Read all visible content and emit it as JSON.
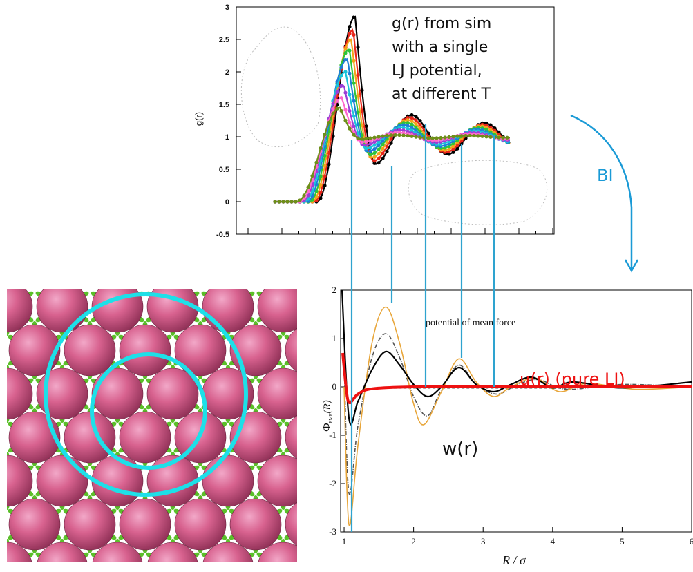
{
  "top_chart": {
    "ylabel": "g(r)",
    "yticks": [
      "3",
      "2.5",
      "2",
      "1.5",
      "1",
      "0.5",
      "0",
      "-0.5"
    ],
    "note_lines": [
      "g(r) from sim",
      "with a single",
      "LJ potential,",
      "at different T"
    ],
    "colors": [
      "#000000",
      "#e8261a",
      "#f2a51a",
      "#2ec43a",
      "#1d7fd6",
      "#19c3d9",
      "#9b3fd6",
      "#ff66cc",
      "#6e8f1a"
    ],
    "chart_data": {
      "type": "line",
      "ylabel": "g(r)",
      "ylim": [
        -0.5,
        3
      ],
      "series_peak_heights": [
        2.85,
        2.65,
        2.5,
        2.35,
        2.2,
        2.0,
        1.8,
        1.6,
        1.45
      ]
    }
  },
  "arrow_label": "BI",
  "bottom_chart": {
    "title": "potential of mean force",
    "xlabel": "R / σ",
    "ylabel_main": "Φ",
    "ylabel_sub": "PMF",
    "ylabel_tail": "(R)",
    "xticks": [
      "1",
      "2",
      "3",
      "4",
      "5",
      "6"
    ],
    "yticks": [
      "2",
      "1",
      "0",
      "-1",
      "-2",
      "-3"
    ],
    "label_u": "u(r) (pure LJ)",
    "label_w": "w(r)",
    "u_color": "#ee1111",
    "chart_data": {
      "type": "line",
      "title": "potential of mean force",
      "xlabel": "R / σ",
      "xlim": [
        0.95,
        6.0
      ],
      "ylim": [
        -3,
        2
      ],
      "series": [
        {
          "name": "u(r) (pure LJ)",
          "color": "#ee1111",
          "x": [
            0.98,
            1.02,
            1.05,
            1.08,
            1.12,
            1.2,
            1.4,
            2.0,
            3.0,
            6.0
          ],
          "y": [
            0.7,
            0.1,
            -0.25,
            -0.33,
            -0.28,
            -0.15,
            -0.04,
            0.0,
            0.0,
            0.0
          ]
        },
        {
          "name": "w(r)",
          "color": "#000000",
          "x": [
            0.97,
            1.07,
            1.2,
            1.4,
            1.6,
            1.8,
            2.0,
            2.2,
            2.4,
            2.65,
            2.9,
            3.15,
            3.4,
            3.7,
            4.0,
            4.3,
            5.0,
            6.0
          ],
          "y": [
            2.0,
            -0.65,
            -0.3,
            0.35,
            0.73,
            0.45,
            0.05,
            -0.2,
            0.0,
            0.4,
            0.05,
            -0.1,
            0.05,
            0.2,
            -0.02,
            0.1,
            -0.02,
            0.1
          ]
        },
        {
          "name": "",
          "color": "#e8a63a",
          "x": [
            1.0,
            1.07,
            1.2,
            1.4,
            1.6,
            1.8,
            2.0,
            2.15,
            2.4,
            2.65,
            2.9,
            3.15,
            3.4,
            3.75,
            4.1,
            4.5,
            5.2,
            6.0
          ],
          "y": [
            0.0,
            -2.85,
            -1.2,
            0.9,
            1.65,
            0.9,
            -0.35,
            -0.78,
            -0.1,
            0.58,
            0.1,
            -0.2,
            0.0,
            0.18,
            -0.1,
            0.07,
            -0.05,
            0.0
          ]
        },
        {
          "name": "",
          "color": "#555555",
          "x": [
            1.0,
            1.07,
            1.2,
            1.4,
            1.6,
            1.8,
            2.0,
            2.2,
            2.4,
            2.65,
            2.9,
            3.2,
            3.5,
            3.8,
            4.2,
            5.0,
            6.0
          ],
          "y": [
            0.5,
            -2.2,
            -0.8,
            0.6,
            1.1,
            0.6,
            -0.2,
            -0.6,
            -0.05,
            0.45,
            0.05,
            -0.15,
            0.05,
            0.15,
            -0.05,
            0.05,
            0.0
          ]
        }
      ]
    }
  }
}
